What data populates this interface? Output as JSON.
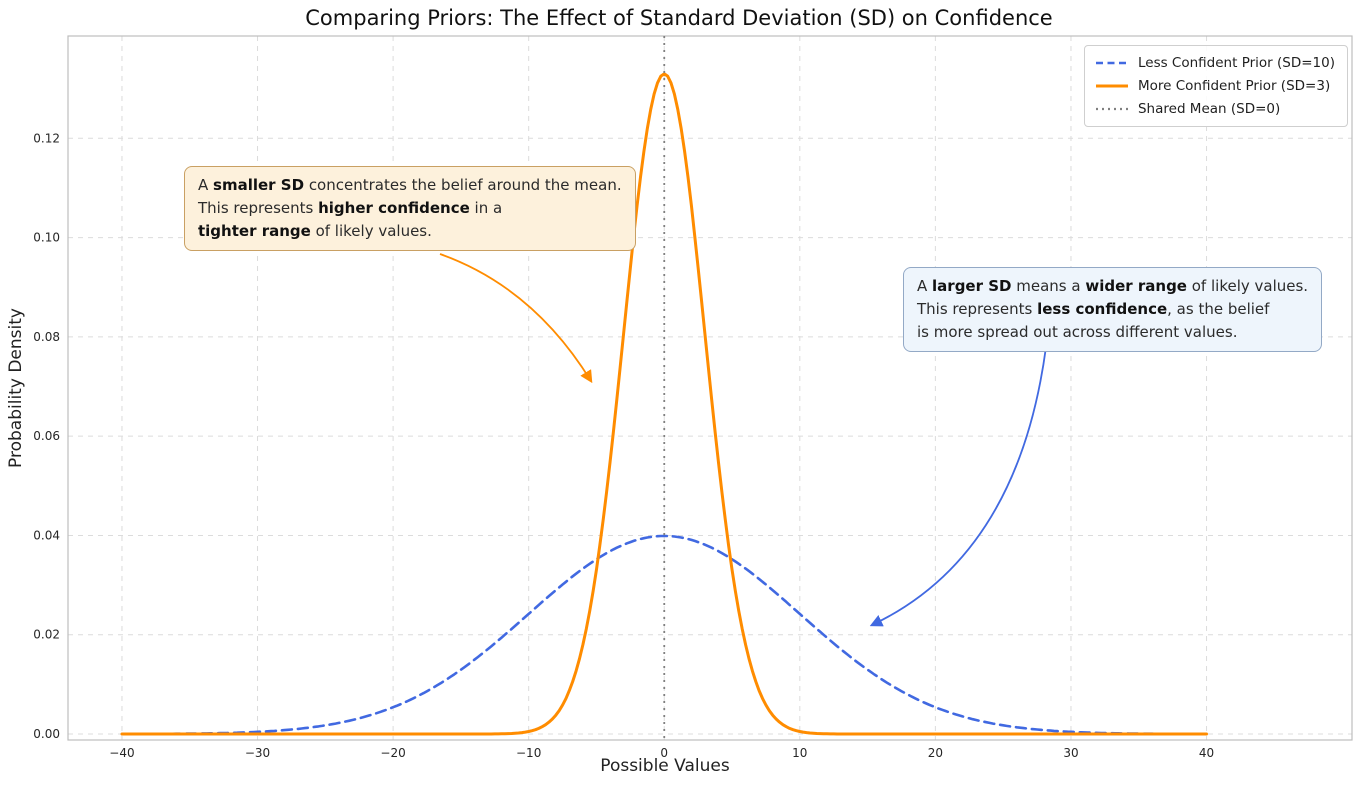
{
  "chart_data": {
    "type": "line",
    "title": "Comparing Priors: The Effect of Standard Deviation (SD) on Confidence",
    "xlabel": "Possible Values",
    "ylabel": "Probability Density",
    "xlim": [
      -43.98,
      50.73
    ],
    "ylim": [
      -0.0012,
      0.1406
    ],
    "x_ticks": [
      -40,
      -30,
      -20,
      -10,
      0,
      10,
      20,
      30,
      40
    ],
    "y_ticks": [
      0.0,
      0.02,
      0.04,
      0.06,
      0.08,
      0.1,
      0.12
    ],
    "grid": true,
    "legend_position": "upper right",
    "series": [
      {
        "name": "Less Confident Prior (SD=10)",
        "distribution": "normal",
        "mean": 0,
        "sd": 10,
        "peak_density": 0.0399,
        "x_range": [
          -40,
          40
        ],
        "color": "#4169e1",
        "line_style": "dashed",
        "line_width": 2.6
      },
      {
        "name": "More Confident Prior (SD=3)",
        "distribution": "normal",
        "mean": 0,
        "sd": 3,
        "peak_density": 0.133,
        "x_range": [
          -40,
          40
        ],
        "color": "#ff8c00",
        "line_style": "solid",
        "line_width": 3
      }
    ],
    "reference_line": {
      "name": "Shared Mean (SD=0)",
      "x": 0,
      "color": "#808080",
      "line_style": "dotted"
    }
  },
  "annotations": [
    {
      "id": "smaller-sd-note",
      "box_bg": "#fdf1dc",
      "box_border": "#c9a063",
      "arrow_color": "#ff8c00",
      "segments": [
        [
          "A ",
          0
        ],
        [
          "smaller SD",
          1
        ],
        [
          " concentrates the belief around the mean.\nThis represents ",
          0
        ],
        [
          "higher confidence",
          1
        ],
        [
          " in a\n",
          0
        ],
        [
          "tighter range",
          1
        ],
        [
          " of likely values.",
          0
        ]
      ]
    },
    {
      "id": "larger-sd-note",
      "box_bg": "#eef5fc",
      "box_border": "#93a9c6",
      "arrow_color": "#4169e1",
      "segments": [
        [
          "A ",
          0
        ],
        [
          "larger SD",
          1
        ],
        [
          " means a ",
          0
        ],
        [
          "wider range",
          1
        ],
        [
          " of likely values.\nThis represents ",
          0
        ],
        [
          "less confidence",
          1
        ],
        [
          ", as the belief\nis more spread out across different values.",
          0
        ]
      ]
    }
  ]
}
